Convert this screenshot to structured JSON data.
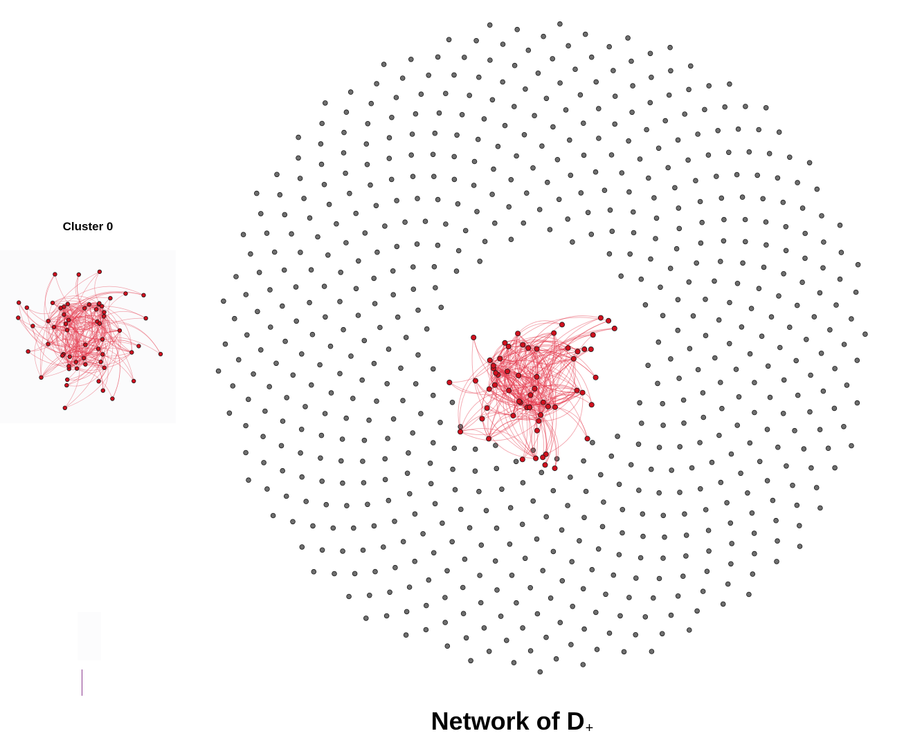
{
  "inset": {
    "title": "Cluster 0"
  },
  "main": {
    "title": "Network of D",
    "title_subscript": "+"
  },
  "colors": {
    "background_node": "#6e6e6e",
    "cluster_node": "#d0101e",
    "cluster_edge": "#e5364a",
    "node_outline": "#1a1a1a"
  },
  "nodes": {
    "background_count": 720,
    "cluster_count": 60,
    "shape": "circle"
  }
}
